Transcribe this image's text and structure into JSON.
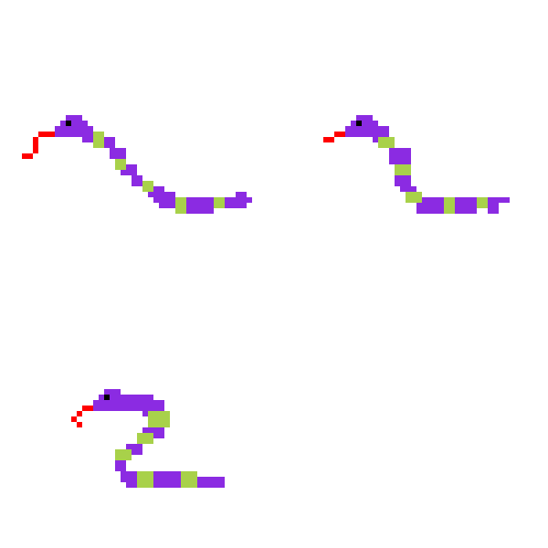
{
  "sheet": {
    "background": "#ffffff",
    "frame_count": 3
  },
  "palette": {
    "body": "#8b2be2",
    "stripe": "#a8d14a",
    "tongue": "#ff0000",
    "eye": "#000000"
  },
  "frames": [
    {
      "name": "snake-frame-1",
      "pose": "stretched"
    },
    {
      "name": "snake-frame-2",
      "pose": "s-curve"
    },
    {
      "name": "snake-frame-3",
      "pose": "coiled"
    }
  ]
}
